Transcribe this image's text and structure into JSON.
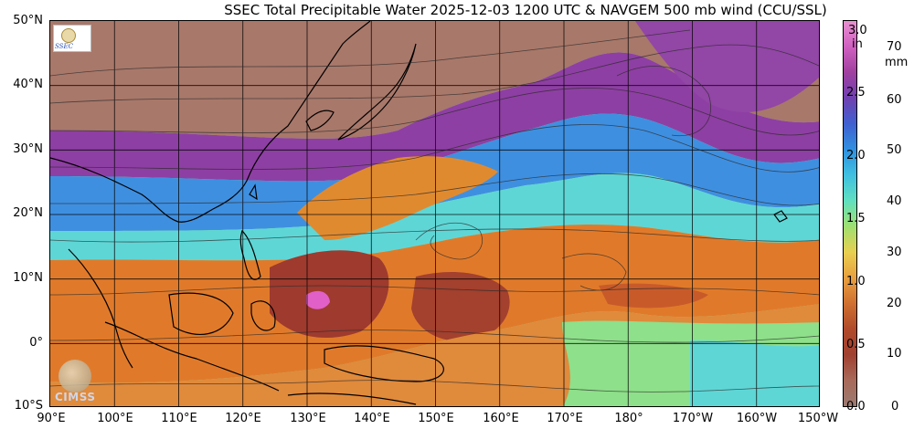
{
  "title": "SSEC Total Precipitable Water  2025-12-03 1200 UTC & NAVGEM 500 mb wind (CCU/SSL)",
  "map": {
    "lat_labels": [
      "50°N",
      "40°N",
      "30°N",
      "20°N",
      "10°N",
      "0°",
      "10°S"
    ],
    "lon_labels": [
      "90°E",
      "100°E",
      "110°E",
      "120°E",
      "130°E",
      "140°E",
      "150°E",
      "160°E",
      "170°E",
      "180°",
      "170°W",
      "160°W",
      "150°W"
    ],
    "colors": {
      "dry": "#a8786a",
      "purple": "#8e3fa3",
      "blue": "#3f8fe0",
      "cyan": "#5fd6d6",
      "green": "#8ee08a",
      "orange": "#e07a2a",
      "darkred": "#9e3a2e",
      "pink": "#e060c8",
      "coast": "#000000",
      "grid": "#000000"
    }
  },
  "colorbar": {
    "unit_in": "in",
    "unit_mm": "mm",
    "in_ticks": [
      "3.0",
      "2.5",
      "2.0",
      "1.5",
      "1.0",
      "0.5",
      "0.0"
    ],
    "mm_ticks": [
      "70",
      "60",
      "50",
      "40",
      "30",
      "20",
      "10",
      "0"
    ],
    "stops": [
      "#9c7a70",
      "#a86a5a",
      "#a04030",
      "#b04a2a",
      "#d07030",
      "#e8a040",
      "#e8d050",
      "#a0e070",
      "#60e0c0",
      "#40c0e0",
      "#3090e0",
      "#4060d0",
      "#7040b0",
      "#a040a0",
      "#d060c0",
      "#e890d0"
    ]
  },
  "logos": {
    "ssec_icon": "ssec-logo-icon",
    "cimss_text": "CIMSS"
  }
}
